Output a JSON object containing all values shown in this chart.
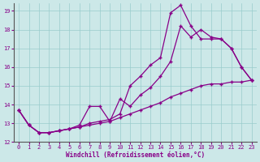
{
  "xlabel": "Windchill (Refroidissement éolien,°C)",
  "bg_color": "#cce8e8",
  "line_color": "#880088",
  "grid_color": "#99cccc",
  "xlim": [
    -0.5,
    23.5
  ],
  "ylim": [
    12,
    19.4
  ],
  "xticks": [
    0,
    1,
    2,
    3,
    4,
    5,
    6,
    7,
    8,
    9,
    10,
    11,
    12,
    13,
    14,
    15,
    16,
    17,
    18,
    19,
    20,
    21,
    22,
    23
  ],
  "yticks": [
    12,
    13,
    14,
    15,
    16,
    17,
    18,
    19
  ],
  "s1_x": [
    0,
    1,
    2,
    3,
    4,
    5,
    6,
    7,
    8,
    9,
    10,
    11,
    12,
    13,
    14,
    15,
    16,
    17,
    18,
    19,
    20,
    21,
    22,
    23
  ],
  "s1_y": [
    13.7,
    12.9,
    12.5,
    12.5,
    12.6,
    12.7,
    12.9,
    13.9,
    13.9,
    13.1,
    14.3,
    13.9,
    14.5,
    14.9,
    15.5,
    16.3,
    18.2,
    17.6,
    18.0,
    17.6,
    17.5,
    17.0,
    16.0,
    15.3
  ],
  "s2_x": [
    0,
    1,
    2,
    3,
    4,
    5,
    6,
    7,
    8,
    9,
    10,
    11,
    12,
    13,
    14,
    15,
    16,
    17,
    18,
    19,
    20,
    21,
    22,
    23
  ],
  "s2_y": [
    13.7,
    12.9,
    12.5,
    12.5,
    12.6,
    12.7,
    12.8,
    13.0,
    13.1,
    13.2,
    13.5,
    15.0,
    15.5,
    16.1,
    16.5,
    18.9,
    19.3,
    18.2,
    17.5,
    17.5,
    17.5,
    17.0,
    16.0,
    15.3
  ],
  "s3_x": [
    0,
    1,
    2,
    3,
    4,
    5,
    6,
    7,
    8,
    9,
    10,
    11,
    12,
    13,
    14,
    15,
    16,
    17,
    18,
    19,
    20,
    21,
    22,
    23
  ],
  "s3_y": [
    13.7,
    12.9,
    12.5,
    12.5,
    12.6,
    12.7,
    12.8,
    12.9,
    13.0,
    13.1,
    13.3,
    13.5,
    13.7,
    13.9,
    14.1,
    14.4,
    14.6,
    14.8,
    15.0,
    15.1,
    15.1,
    15.2,
    15.2,
    15.3
  ]
}
